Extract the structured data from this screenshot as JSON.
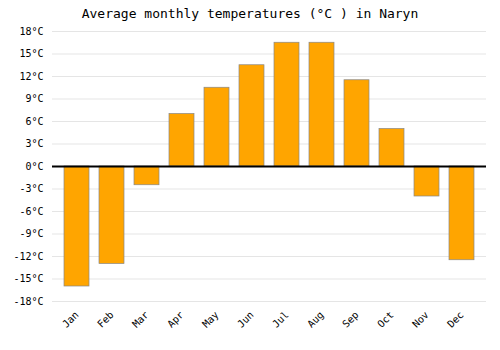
{
  "chart_data": {
    "type": "bar",
    "title": "Average monthly temperatures (°C ) in Naryn",
    "categories": [
      "Jan",
      "Feb",
      "Mar",
      "Apr",
      "May",
      "Jun",
      "Jul",
      "Aug",
      "Sep",
      "Oct",
      "Nov",
      "Dec"
    ],
    "values": [
      -16,
      -13,
      -2.5,
      7,
      10.5,
      13.5,
      16.5,
      16.5,
      11.5,
      5,
      -4,
      -12.5
    ],
    "color": "#FFA500",
    "ylim": [
      -18,
      18
    ],
    "yticks": [
      {
        "value": -18,
        "label": "-18°C"
      },
      {
        "value": -15,
        "label": "-15°C"
      },
      {
        "value": -12,
        "label": "-12°C"
      },
      {
        "value": -9,
        "label": "-9°C"
      },
      {
        "value": -6,
        "label": "-6°C"
      },
      {
        "value": -3,
        "label": "-3°C"
      },
      {
        "value": 0,
        "label": "0°C"
      },
      {
        "value": 3,
        "label": "3°C"
      },
      {
        "value": 6,
        "label": "6°C"
      },
      {
        "value": 9,
        "label": "9°C"
      },
      {
        "value": 12,
        "label": "12°C"
      },
      {
        "value": 15,
        "label": "15°C"
      },
      {
        "value": 18,
        "label": "18°C"
      }
    ],
    "grid": true
  }
}
